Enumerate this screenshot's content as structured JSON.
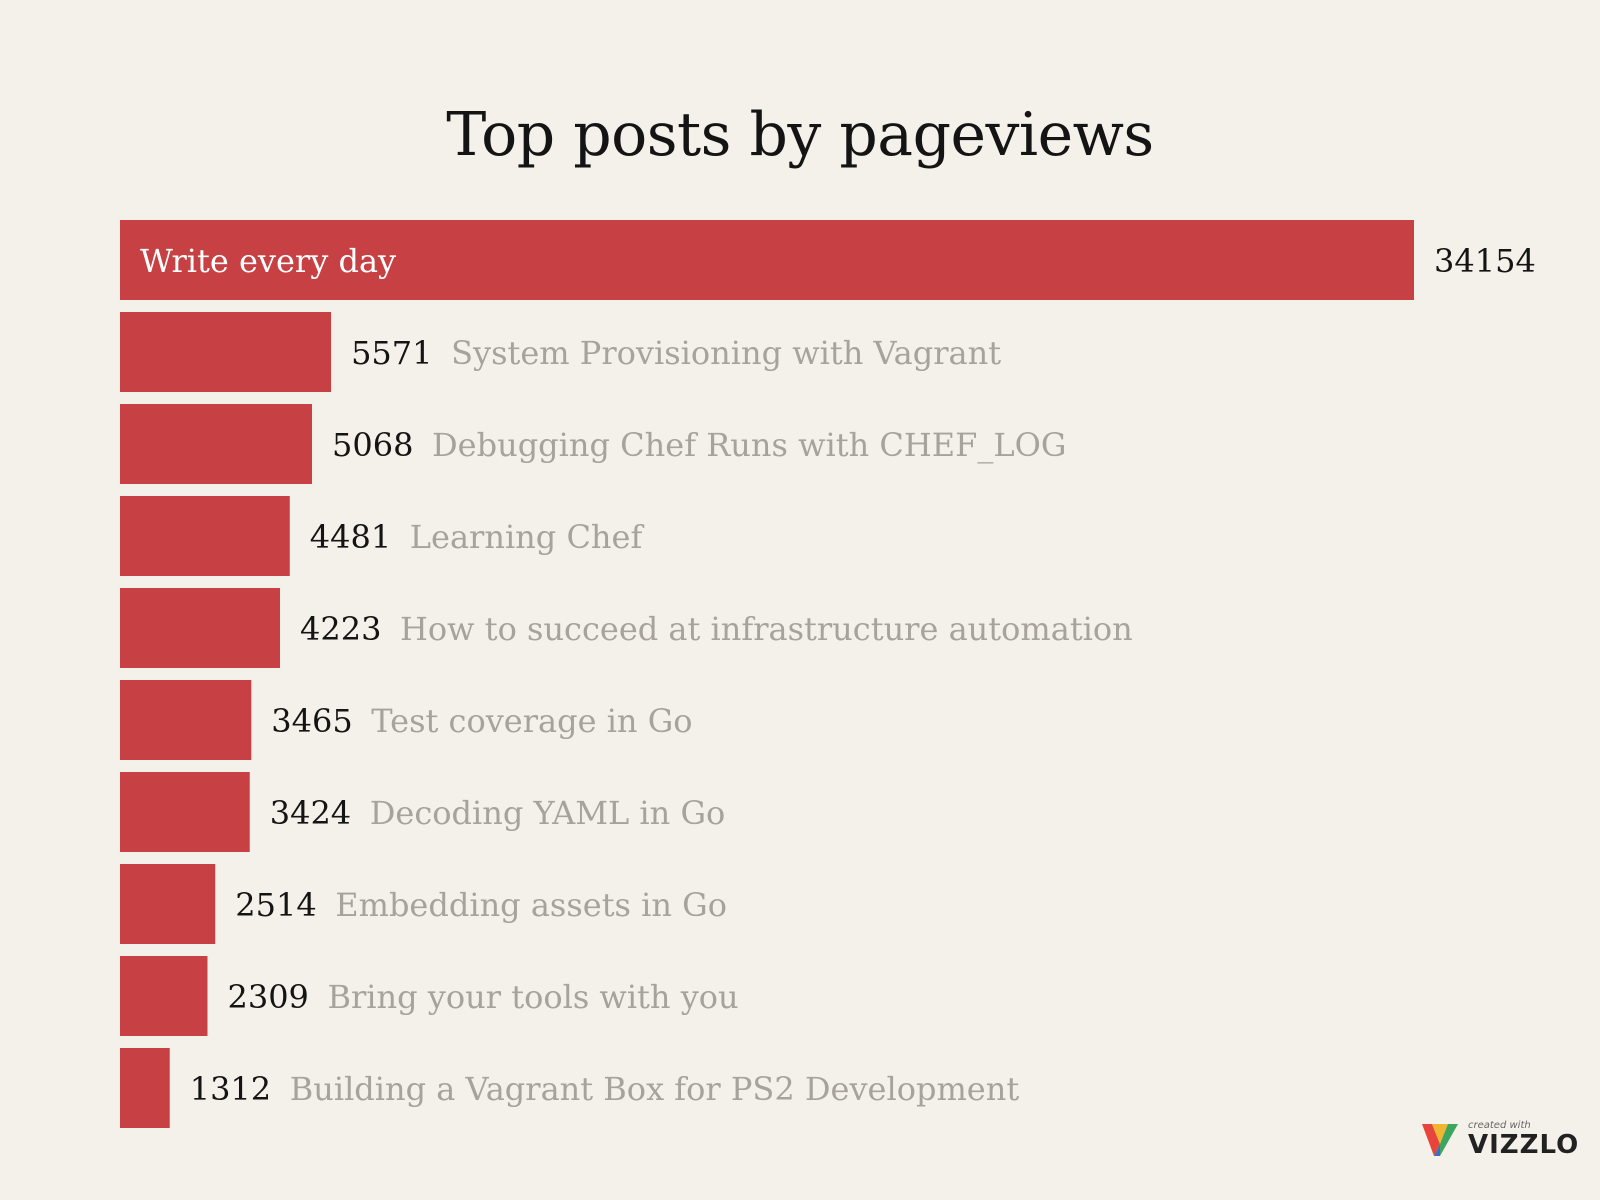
{
  "chart_data": {
    "type": "bar",
    "orientation": "horizontal",
    "title": "Top posts by pageviews",
    "categories": [
      "Write every day",
      "System Provisioning with Vagrant",
      "Debugging Chef Runs with CHEF_LOG",
      "Learning Chef",
      "How to succeed at infrastructure automation",
      "Test coverage in Go",
      "Decoding YAML in Go",
      "Embedding assets in Go",
      "Bring your tools with you",
      "Building a Vagrant Box for PS2 Development"
    ],
    "values": [
      34154,
      5571,
      5068,
      4481,
      4223,
      3465,
      3424,
      2514,
      2309,
      1312
    ],
    "xlim": [
      0,
      34154
    ],
    "grid": false,
    "legend": "none"
  },
  "colors": {
    "bar": "#c64044",
    "value_text": "#141414",
    "label_text": "#a8a29c",
    "inside_label": "#ffffff",
    "background": "#f4f0ea"
  },
  "branding": {
    "small": "created with",
    "word": "VIZZLO"
  }
}
